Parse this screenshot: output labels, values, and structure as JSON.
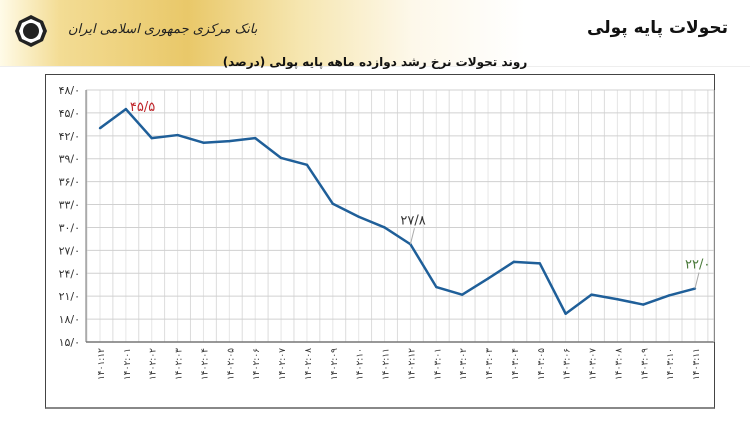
{
  "header": {
    "title": "تحولات پایه پولی",
    "bank_name": "بانک مرکزی جمهوری اسلامی ایران",
    "logo_icon": "central-bank-logo"
  },
  "chart_data": {
    "type": "line",
    "title": "روند تحولات نرخ رشد دوازده ماهه پایه پولی (درصد)",
    "xlabel": "",
    "ylabel": "",
    "ylim": [
      15,
      48
    ],
    "grid": true,
    "line_color": "#1f5f99",
    "y_ticks": [
      "۱۵/۰",
      "۱۸/۰",
      "۲۱/۰",
      "۲۴/۰",
      "۲۷/۰",
      "۳۰/۰",
      "۳۳/۰",
      "۳۶/۰",
      "۳۹/۰",
      "۴۲/۰",
      "۴۵/۰",
      "۴۸/۰"
    ],
    "categories": [
      "۱۴۰۱:۱۲",
      "۱۴۰۲:۰۱",
      "۱۴۰۲:۰۲",
      "۱۴۰۲:۰۳",
      "۱۴۰۲:۰۴",
      "۱۴۰۲:۰۵",
      "۱۴۰۲:۰۶",
      "۱۴۰۲:۰۷",
      "۱۴۰۲:۰۸",
      "۱۴۰۲:۰۹",
      "۱۴۰۲:۱۰",
      "۱۴۰۲:۱۱",
      "۱۴۰۲:۱۲",
      "۱۴۰۳:۰۱",
      "۱۴۰۳:۰۲",
      "۱۴۰۳:۰۳",
      "۱۴۰۳:۰۴",
      "۱۴۰۳:۰۵",
      "۱۴۰۳:۰۶",
      "۱۴۰۳:۰۷",
      "۱۴۰۳:۰۸",
      "۱۴۰۳:۰۹",
      "۱۴۰۳:۱۰",
      "۱۴۰۳:۱۱"
    ],
    "values": [
      43.0,
      45.5,
      41.7,
      42.1,
      41.1,
      41.3,
      41.7,
      39.1,
      38.2,
      33.1,
      31.4,
      30.0,
      27.8,
      22.2,
      21.2,
      23.3,
      25.5,
      25.3,
      18.7,
      21.2,
      20.6,
      19.9,
      21.1,
      22.0
    ],
    "annotations": [
      {
        "index": 1,
        "text": "۴۵/۵",
        "color": "#c0282d"
      },
      {
        "index": 12,
        "text": "۲۷/۸",
        "color": "#333333"
      },
      {
        "index": 23,
        "text": "۲۲/۰",
        "color": "#4a7a3a"
      }
    ]
  }
}
